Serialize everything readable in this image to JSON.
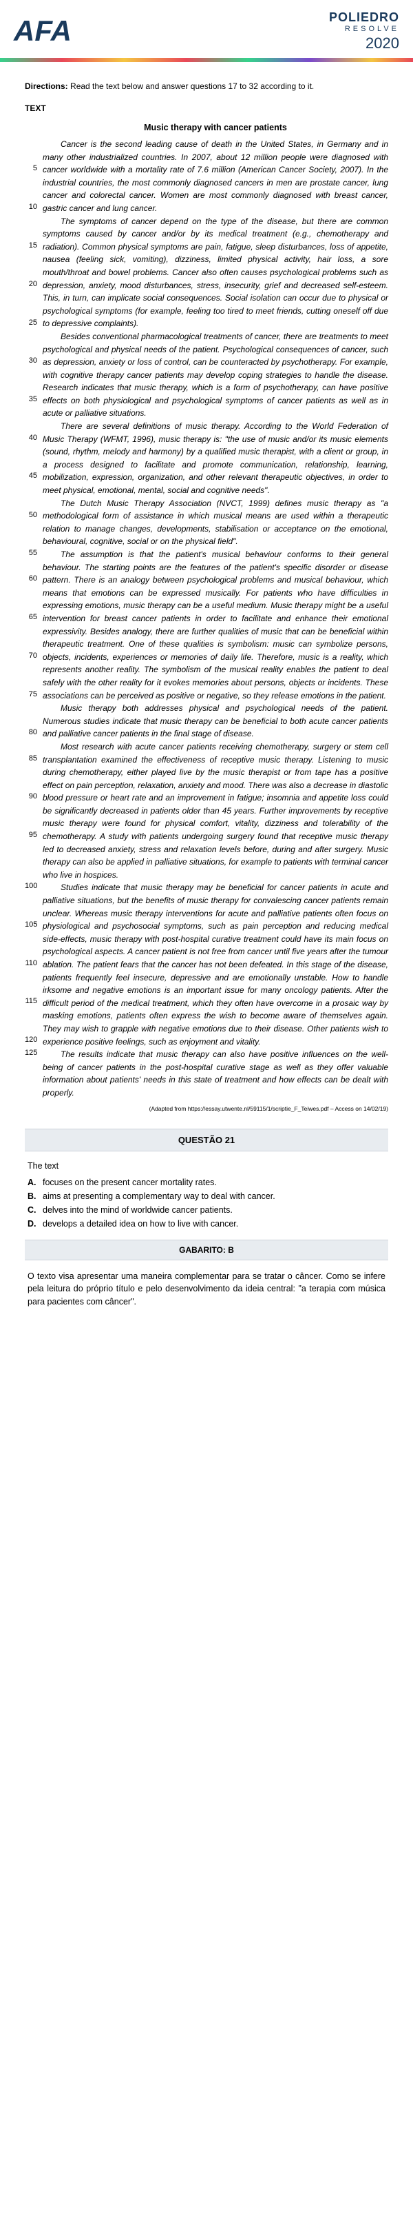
{
  "header": {
    "logo_left": "AFA",
    "logo_right_top": "POLIEDRO",
    "logo_right_mid": "RESOLVE",
    "logo_right_year": "2020"
  },
  "directions_label": "Directions:",
  "directions_text": " Read the text below and answer questions 17 to 32 according to it.",
  "text_label": "TEXT",
  "article_title": "Music therapy with cancer patients",
  "line_numbers": [
    "5",
    "10",
    "15",
    "20",
    "25",
    "30",
    "35",
    "40",
    "45",
    "50",
    "55",
    "60",
    "65",
    "70",
    "75",
    "80",
    "85",
    "90",
    "95",
    "100",
    "105",
    "110",
    "115",
    "120",
    "125"
  ],
  "paragraphs": [
    {
      "ln": [
        [
          "5",
          "2"
        ],
        [
          "10",
          "5"
        ]
      ],
      "text": "Cancer is the second leading cause of death in the United States, in Germany and in many other industrialized countries. In 2007, about 12 million people were diagnosed with cancer worldwide with a mortality rate of 7.6 million (American Cancer Society, 2007). In the industrial countries, the most commonly diagnosed cancers in men are prostate cancer, lung cancer and colorectal cancer. Women are most commonly diagnosed with breast cancer, gastric cancer and lung cancer."
    },
    {
      "ln": [
        [
          "15",
          "2"
        ],
        [
          "20",
          "5"
        ],
        [
          "25",
          "8"
        ]
      ],
      "text": "The symptoms of cancer depend on the type of the disease, but there are common symptoms caused by cancer and/or by its medical treatment (e.g., chemotherapy and radiation). Common physical symptoms are pain, fatigue, sleep disturbances, loss of appetite, nausea (feeling sick, vomiting), dizziness, limited physical activity, hair loss, a sore mouth/throat and bowel problems. Cancer also often causes psychological problems such as depression, anxiety, mood disturbances, stress, insecurity, grief and decreased self-esteem. This, in turn, can implicate social consequences. Social isolation can occur due to physical or psychological symptoms (for example, feeling too tired to meet friends, cutting oneself off due to depressive complaints)."
    },
    {
      "ln": [
        [
          "30",
          "2"
        ],
        [
          "35",
          "5"
        ]
      ],
      "text": "Besides conventional pharmacological treatments of cancer, there are treatments to meet psychological and physical needs of the patient. Psychological consequences of cancer, such as depression, anxiety or loss of control, can be counteracted by psychotherapy. For example, with cognitive therapy cancer patients may develop coping strategies to handle the disease. Research indicates that music therapy, which is a form of psychotherapy, can have positive effects on both physiological and psychological symptoms of cancer patients as well as in acute or palliative situations."
    },
    {
      "ln": [
        [
          "40",
          "1"
        ],
        [
          "45",
          "4"
        ]
      ],
      "text": "There are several definitions of music therapy. According to the World Federation of Music Therapy (WFMT, 1996), music therapy is: \"the use of music and/or its music elements (sound, rhythm, melody and harmony) by a qualified music therapist, with a client or group, in a process designed to facilitate and promote communication, relationship, learning, mobilization, expression, organization, and other relevant therapeutic objectives, in order to meet physical, emotional, mental, social and cognitive needs\"."
    },
    {
      "ln": [
        [
          "50",
          "1"
        ],
        [
          "55",
          "4"
        ]
      ],
      "text": "The Dutch Music Therapy Association (NVCT, 1999) defines music therapy as \"a methodological form of assistance in which musical means are used within a therapeutic relation to manage changes, developments, stabilisation or acceptance on the emotional, behavioural, cognitive, social or on the physical field\"."
    },
    {
      "ln": [
        [
          "60",
          "2"
        ],
        [
          "65",
          "5"
        ],
        [
          "70",
          "8"
        ],
        [
          "75",
          "11"
        ]
      ],
      "text": "The assumption is that the patient's musical behaviour conforms to their general behaviour. The starting points are the features of the patient's specific disorder or disease pattern. There is an analogy between psychological problems and musical behaviour, which means that emotions can be expressed musically. For patients who have difficulties in expressing emotions, music therapy can be a useful medium. Music therapy might be a useful intervention for breast cancer patients in order to facilitate and enhance their emotional expressivity. Besides analogy, there are further qualities of music that can be beneficial within therapeutic treatment. One of these qualities is symbolism: music can symbolize persons, objects, incidents, experiences or memories of daily life. Therefore, music is a reality, which represents another reality. The symbolism of the musical reality enables the patient to deal safely with the other reality for it evokes memories about persons, objects or incidents. These associations can be perceived as positive or negative, so they release emotions in the patient."
    },
    {
      "ln": [
        [
          "80",
          "2"
        ]
      ],
      "text": "Music therapy both addresses physical and psychological needs of the patient. Numerous studies indicate that music therapy can be beneficial to both acute cancer patients and palliative cancer patients in the final stage of disease."
    },
    {
      "ln": [
        [
          "85",
          "1"
        ],
        [
          "90",
          "4"
        ],
        [
          "95",
          "7"
        ]
      ],
      "text": "Most research with acute cancer patients receiving chemotherapy, surgery or stem cell transplantation examined the effectiveness of receptive music therapy. Listening to music during chemotherapy, either played live by the music therapist or from tape has a positive effect on pain perception, relaxation, anxiety and mood. There was also a decrease in diastolic blood pressure or heart rate and an improvement in fatigue; insomnia and appetite loss could be significantly decreased in patients older than 45 years. Further improvements by receptive music therapy were found for physical comfort, vitality, dizziness and tolerability of the chemotherapy. A study with patients undergoing surgery found that receptive music therapy led to decreased anxiety, stress and relaxation levels before, during and after surgery. Music therapy can also be applied in palliative situations, for example to patients with terminal cancer who live in hospices."
    },
    {
      "ln": [
        [
          "100",
          "0"
        ],
        [
          "105",
          "3"
        ],
        [
          "110",
          "6"
        ],
        [
          "115",
          "9"
        ],
        [
          "120",
          "12"
        ]
      ],
      "text": "Studies indicate that music therapy may be beneficial for cancer patients in acute and palliative situations, but the benefits of music therapy for convalescing cancer patients remain unclear. Whereas music therapy interventions for acute and palliative patients often focus on physiological and psychosocial symptoms, such as pain perception and reducing medical side-effects, music therapy with post-hospital curative treatment could have its main focus on psychological aspects. A cancer patient is not free from cancer until five years after the tumour ablation. The patient fears that the cancer has not been defeated. In this stage of the disease, patients frequently feel insecure, depressive and are emotionally unstable. How to handle irksome and negative emotions is an important issue for many oncology patients. After the difficult period of the medical treatment, which they often have overcome in a prosaic way by masking emotions, patients often express the wish to become aware of themselves again. They may wish to grapple with negative emotions due to their disease. Other patients wish to experience positive feelings, such as enjoyment and vitality."
    },
    {
      "ln": [
        [
          "125",
          "0"
        ]
      ],
      "text": "The results indicate that music therapy can also have positive influences on the well-being of cancer patients in the post-hospital curative stage as well as they offer valuable information about patients' needs in this state of treatment and how effects can be dealt with properly."
    }
  ],
  "source": "(Adapted from https://essay.utwente.nl/59115/1/scriptie_F_Teiwes.pdf – Access on 14/02/19)",
  "question": {
    "bar": "QUESTÃO 21",
    "stem": "The text",
    "alts": [
      {
        "l": "A.",
        "t": "focuses on the present cancer mortality rates."
      },
      {
        "l": "B.",
        "t": "aims at presenting a complementary way to deal with cancer."
      },
      {
        "l": "C.",
        "t": "delves into the mind of worldwide cancer patients."
      },
      {
        "l": "D.",
        "t": "develops a detailed idea on how to live with cancer."
      }
    ]
  },
  "gabarito": "GABARITO: B",
  "explanation": "O texto visa apresentar uma maneira complementar para se tratar o câncer. Como se infere pela leitura do próprio título e pelo desenvolvimento da ideia central: \"a terapia com música para pacientes com câncer\"."
}
